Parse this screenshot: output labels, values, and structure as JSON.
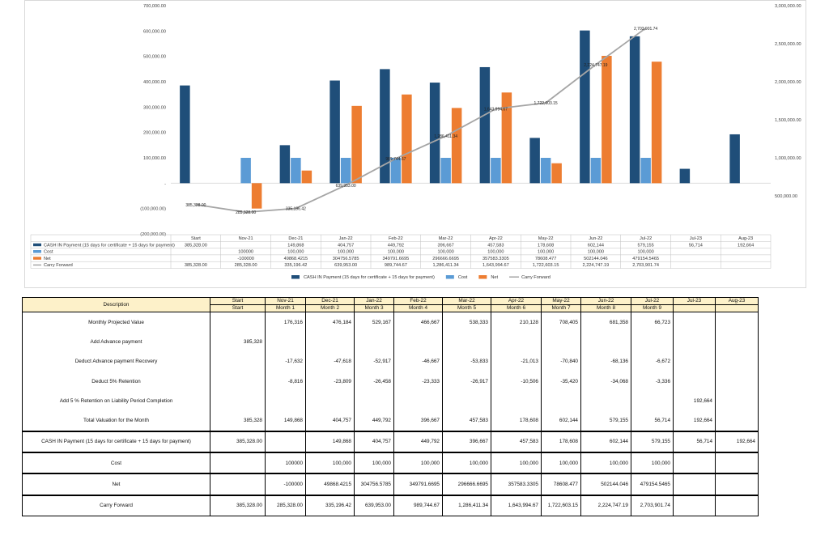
{
  "chart_data": {
    "type": "bar",
    "categories": [
      "Start",
      "Nov-21",
      "Dec-21",
      "Jan-22",
      "Feb-22",
      "Mar-22",
      "Apr-22",
      "May-22",
      "Jun-22",
      "Jul-22",
      "Jul-23",
      "Aug-23"
    ],
    "ylim": [
      -200000,
      700000
    ],
    "y_ticks": [
      "700,000.00",
      "600,000.00",
      "500,000.00",
      "400,000.00",
      "300,000.00",
      "200,000.00",
      "100,000.00",
      "-",
      "(100,000.00)",
      "(200,000.00)"
    ],
    "y2lim": [
      0,
      3000000
    ],
    "y2_ticks": [
      "3,000,000.00",
      "2,500,000.00",
      "2,000,000.00",
      "1,500,000.00",
      "1,000,000.00",
      "500,000.00",
      ""
    ],
    "grid": false,
    "legend": "bottom",
    "series": [
      {
        "name": "CASH IN Payment (15 days for certificate + 15 days for payment)",
        "kind": "bar",
        "color": "#1f4e79",
        "values": [
          385328,
          null,
          149868,
          404757,
          449792,
          396667,
          457583,
          178608,
          602144,
          579155,
          56714,
          192664
        ],
        "table": [
          "385,328.00",
          "",
          "149,868",
          "404,757",
          "449,792",
          "396,667",
          "457,583",
          "178,608",
          "602,144",
          "579,155",
          "56,714",
          "192,664"
        ]
      },
      {
        "name": "Cost",
        "kind": "bar",
        "color": "#5b9bd5",
        "values": [
          null,
          100000,
          100000,
          100000,
          100000,
          100000,
          100000,
          100000,
          100000,
          100000,
          null,
          null
        ],
        "table": [
          "",
          "100000",
          "100,000",
          "100,000",
          "100,000",
          "100,000",
          "100,000",
          "100,000",
          "100,000",
          "100,000",
          "",
          ""
        ]
      },
      {
        "name": "Net",
        "kind": "bar",
        "color": "#ed7d31",
        "values": [
          null,
          -100000,
          49868.4215,
          304756.5785,
          349791.6695,
          296666.6695,
          357583.3305,
          78608.477,
          502144.046,
          479154.5465,
          null,
          null
        ],
        "table": [
          "",
          "-100000",
          "49868.4215",
          "304756.5785",
          "349791.6695",
          "296666.6695",
          "357583.3305",
          "78608.477",
          "502144.046",
          "479154.5465",
          "",
          ""
        ]
      },
      {
        "name": "Carry Forward",
        "kind": "line",
        "axis": "secondary",
        "color": "#a5a5a5",
        "values": [
          385328,
          285328,
          335196.42,
          639953,
          989744.67,
          1286411.34,
          1643994.67,
          1722603.15,
          2224747.19,
          2703901.74,
          null,
          null
        ],
        "labels": [
          "385,328.00",
          "285,328.00",
          "335,196.42",
          "639,953.00",
          "989,744.67",
          "1,286,411.34",
          "1,643,994.67",
          "1,722,603.15",
          "2,224,747.19",
          "2,703,901.74",
          "",
          ""
        ],
        "table": [
          "385,328.00",
          "285,328.00",
          "335,196.42",
          "639,953.00",
          "989,744.67",
          "1,286,411.34",
          "1,643,994.67",
          "1,722,603.15",
          "2,224,747.19",
          "2,703,901.74",
          "",
          ""
        ]
      }
    ]
  },
  "valuation_table": {
    "description_header": "Description",
    "columns": [
      {
        "top": "Start",
        "bottom": "Start"
      },
      {
        "top": "Nov-21",
        "bottom": "Month 1"
      },
      {
        "top": "Dec-21",
        "bottom": "Month 2"
      },
      {
        "top": "Jan-22",
        "bottom": "Month 3"
      },
      {
        "top": "Feb-22",
        "bottom": "Month 4"
      },
      {
        "top": "Mar-22",
        "bottom": "Month 5"
      },
      {
        "top": "Apr-22",
        "bottom": "Month 6"
      },
      {
        "top": "May-22",
        "bottom": "Month 7"
      },
      {
        "top": "Jun-22",
        "bottom": "Month 8"
      },
      {
        "top": "Jul-22",
        "bottom": "Month 9"
      },
      {
        "top": "Jul-23",
        "bottom": ""
      },
      {
        "top": "Aug-23",
        "bottom": ""
      }
    ],
    "rows": [
      {
        "label": "Monthly Projected  Value",
        "style": "first",
        "cells": [
          "",
          "176,316",
          "476,184",
          "529,167",
          "466,667",
          "538,333",
          "210,128",
          "708,405",
          "681,358",
          "66,723",
          "",
          ""
        ]
      },
      {
        "label": "Add Advance payment",
        "style": "mid",
        "cells": [
          "385,328",
          "",
          "",
          "",
          "",
          "",
          "",
          "",
          "",
          "",
          "",
          ""
        ]
      },
      {
        "label": "Deduct Advance payment Recovery",
        "style": "mid",
        "cells": [
          "",
          "-17,632",
          "-47,618",
          "-52,917",
          "-46,667",
          "-53,833",
          "-21,013",
          "-70,840",
          "-68,136",
          "-6,672",
          "",
          ""
        ]
      },
      {
        "label": "Deduct 5% Retention",
        "style": "mid",
        "cells": [
          "",
          "-8,816",
          "-23,809",
          "-26,458",
          "-23,333",
          "-26,917",
          "-10,506",
          "-35,420",
          "-34,068",
          "-3,336",
          "",
          ""
        ]
      },
      {
        "label": "Add 5 % Retention on Liability Period Completion",
        "style": "mid",
        "cells": [
          "",
          "",
          "",
          "",
          "",
          "",
          "",
          "",
          "",
          "",
          "192,664",
          ""
        ]
      },
      {
        "label": "Total Valuation for the Month",
        "style": "last",
        "cells": [
          "385,328",
          "149,868",
          "404,757",
          "449,792",
          "396,667",
          "457,583",
          "178,608",
          "602,144",
          "579,155",
          "56,714",
          "192,664",
          ""
        ]
      },
      {
        "label": "CASH IN Payment (15 days for certificate + 15 days for payment)",
        "style": "top",
        "cells": [
          "385,328.00",
          "",
          "149,868",
          "404,757",
          "449,792",
          "396,667",
          "457,583",
          "178,608",
          "602,144",
          "579,155",
          "56,714",
          "192,664"
        ]
      },
      {
        "label": "Cost",
        "style": "top",
        "cells": [
          "",
          "100000",
          "100,000",
          "100,000",
          "100,000",
          "100,000",
          "100,000",
          "100,000",
          "100,000",
          "100,000",
          "",
          ""
        ]
      },
      {
        "label": "Net",
        "style": "top",
        "cells": [
          "",
          "-100000",
          "49868.4215",
          "304756.5785",
          "349791.6695",
          "296666.6695",
          "357583.3305",
          "78608.477",
          "502144.046",
          "479154.5465",
          "",
          ""
        ]
      },
      {
        "label": "Carry Forward",
        "style": "top",
        "cells": [
          "385,328.00",
          "285,328.00",
          "335,196.42",
          "639,953.00",
          "989,744.67",
          "1,286,411.34",
          "1,643,994.67",
          "1,722,603.15",
          "2,224,747.19",
          "2,703,901.74",
          "",
          ""
        ]
      }
    ]
  }
}
